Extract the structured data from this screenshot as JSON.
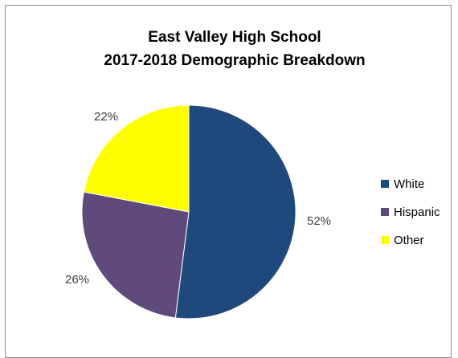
{
  "chart_data": {
    "type": "pie",
    "title": "East Valley High School",
    "subtitle": "2017-2018 Demographic Breakdown",
    "categories": [
      "White",
      "Hispanic",
      "Other"
    ],
    "values": [
      52,
      26,
      22
    ],
    "data_labels": [
      "52%",
      "26%",
      "22%"
    ],
    "colors": [
      "#1f497d",
      "#604a7b",
      "#ffff00"
    ],
    "legend_position": "right",
    "start_angle": "12 o'clock, clockwise"
  }
}
